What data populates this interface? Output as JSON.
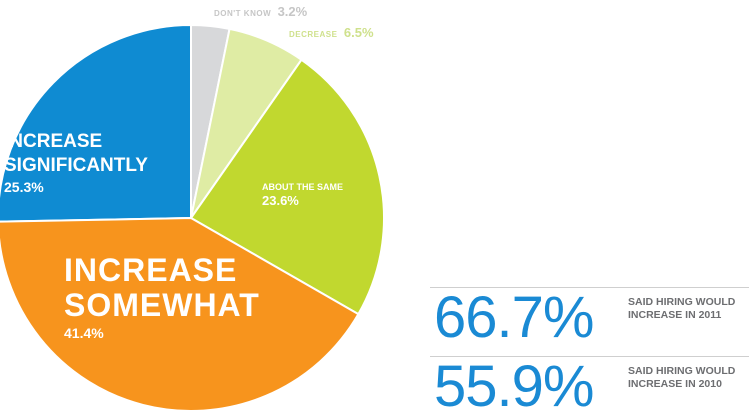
{
  "chart_data": {
    "type": "pie",
    "slices": [
      {
        "label": "INCREASE SIGNIFICANTLY",
        "value": 25.3,
        "value_label": "25.3%",
        "color": "#0f8bd2"
      },
      {
        "label": "DON'T KNOW",
        "value": 3.2,
        "value_label": "3.2%",
        "color": "#d7d8da"
      },
      {
        "label": "DECREASE",
        "value": 6.5,
        "value_label": "6.5%",
        "color": "#dfeca4"
      },
      {
        "label": "ABOUT THE SAME",
        "value": 23.6,
        "value_label": "23.6%",
        "color": "#c1d82f"
      },
      {
        "label": "INCREASE SOMEWHAT",
        "value": 41.4,
        "value_label": "41.4%",
        "color": "#f7941d"
      }
    ]
  },
  "stats": [
    {
      "value": "66.7%",
      "text": "SAID HIRING WOULD INCREASE IN 2011"
    },
    {
      "value": "55.9%",
      "text": "SAID HIRING WOULD INCREASE IN 2010"
    }
  ],
  "colors": {
    "accent": "#1a8ad4",
    "separator": "#cfcfcf",
    "caption": "#6d6e71"
  }
}
